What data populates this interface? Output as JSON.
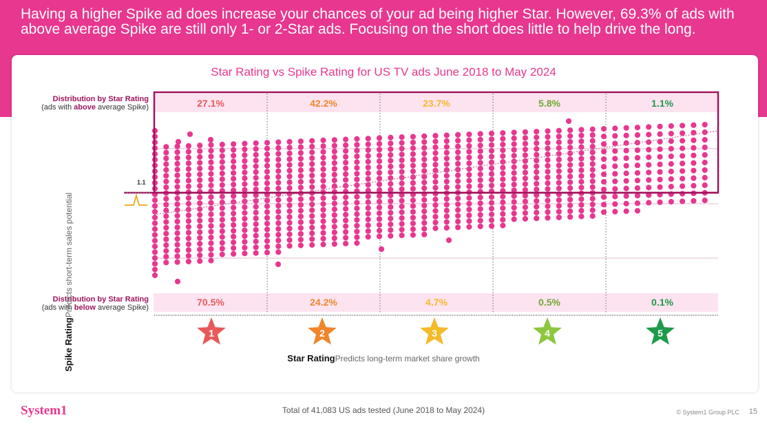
{
  "headline": "Having a higher Spike ad does increase your chances of your ad being higher Star.  However, 69.3% of ads with above average Spike are still only 1- or 2-Star ads.  Focusing on the short does little to help drive the long.",
  "colors": {
    "brand": "#e8378f",
    "dots": "#e8378f",
    "star_1": "#e85a5a",
    "star_2": "#f0852a",
    "star_3": "#f5b92a",
    "star_4": "#8dc63f",
    "star_5": "#1f9a4a"
  },
  "chart_data": {
    "type": "scatter",
    "title": "Star Rating vs Spike Rating for US TV ads June 2018 to May 2024",
    "xlabel_bold": "Star Rating",
    "xlabel": "Predicts long-term market share growth",
    "ylabel_bold": "Spike Rating",
    "ylabel": "Predicts short-term sales potential",
    "average_spike_value": "1.1",
    "star_categories": [
      "1",
      "2",
      "3",
      "4",
      "5"
    ],
    "above_average": {
      "label_line1": "Distribution by Star Rating",
      "label_pre": "(ads with ",
      "label_bold": "above",
      "label_post": " average Spike)",
      "values": [
        "27.1%",
        "42.2%",
        "23.7%",
        "5.8%",
        "1.1%"
      ]
    },
    "below_average": {
      "label_line1": "Distribution by Star Rating",
      "label_pre": "(ads with ",
      "label_bold": "below",
      "label_post": " average Spike)",
      "values": [
        "70.5%",
        "24.2%",
        "4.7%",
        "0.5%",
        "0.1%"
      ]
    },
    "trend": "upward dotted trend line",
    "grid": "vertical dotted separators between star bands"
  },
  "footer": {
    "logo": "System1",
    "total": "Total of 41,083 US ads tested (June 2018 to May 2024)",
    "copyright": "© System1 Group PLC",
    "page": "15"
  }
}
